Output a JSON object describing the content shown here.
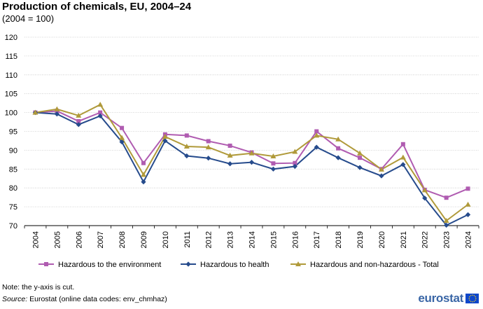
{
  "chart_data": {
    "type": "line",
    "title": "Production of chemicals, EU, 2004–24",
    "subtitle": "(2004 = 100)",
    "xlabel": "",
    "ylabel": "",
    "ylim": [
      70,
      120
    ],
    "yticks": [
      70,
      75,
      80,
      85,
      90,
      95,
      100,
      105,
      110,
      115,
      120
    ],
    "grid": true,
    "legend_position": "bottom",
    "categories": [
      "2004",
      "2005",
      "2006",
      "2007",
      "2008",
      "2009",
      "2010",
      "2011",
      "2012",
      "2013",
      "2014",
      "2015",
      "2016",
      "2017",
      "2018",
      "2019",
      "2020",
      "2021",
      "2022",
      "2023",
      "2024"
    ],
    "series": [
      {
        "name": "Hazardous to the environment",
        "color": "#b05cb1",
        "marker": "square",
        "values": [
          100,
          100.4,
          97.7,
          100.0,
          95.9,
          86.6,
          94.2,
          93.9,
          92.4,
          91.2,
          89.4,
          86.5,
          86.6,
          95.0,
          90.5,
          88.0,
          85.0,
          91.6,
          79.5,
          77.4,
          79.8
        ]
      },
      {
        "name": "Hazardous to health",
        "color": "#264b8c",
        "marker": "diamond",
        "values": [
          100,
          99.6,
          96.8,
          99.1,
          92.2,
          81.6,
          92.5,
          88.5,
          87.9,
          86.4,
          86.8,
          85.0,
          85.7,
          90.8,
          88.0,
          85.4,
          83.2,
          86.2,
          77.3,
          70.1,
          72.9
        ]
      },
      {
        "name": "Hazardous and non-hazardous - Total",
        "color": "#b09a3a",
        "marker": "triangle",
        "values": [
          100,
          100.9,
          99.2,
          102.1,
          93.3,
          83.5,
          93.6,
          91.0,
          90.8,
          88.6,
          89.2,
          88.4,
          89.6,
          93.9,
          92.9,
          89.2,
          84.9,
          88.1,
          79.4,
          71.3,
          75.6
        ]
      }
    ]
  },
  "footer": {
    "note": "Note: the y-axis is cut.",
    "source_label": "Source:",
    "source_text": " Eurostat (online data codes: env_chmhaz)",
    "logo_text": "eurostat"
  }
}
